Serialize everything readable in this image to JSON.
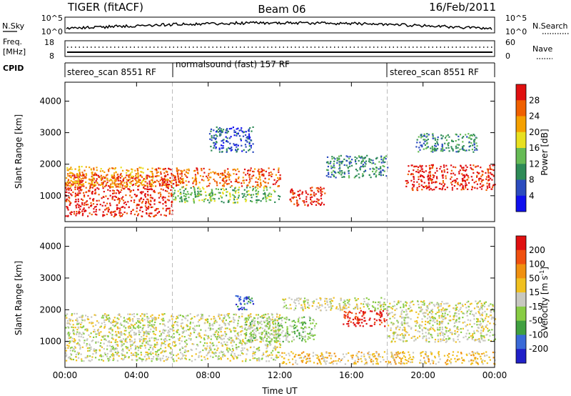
{
  "header": {
    "radar": "TIGER (fitACF)",
    "beam": "Beam 06",
    "date": "16/Feb/2011"
  },
  "aux_panels": {
    "nsky": {
      "label": "N.Sky",
      "left_ticks": [
        "10^5",
        "10^0"
      ],
      "right_label": "N.Search",
      "right_ticks": [
        "10^5",
        "10^0"
      ]
    },
    "freq": {
      "label_line1": "Freq.",
      "label_line2": "[MHz]",
      "left_ticks": [
        "18",
        "8"
      ],
      "right_label": "Nave",
      "right_ticks": [
        "60",
        "0"
      ]
    },
    "cpid": {
      "label": "CPID",
      "segments": [
        {
          "name": "stereo_scan 8551 RF",
          "start_hour": 0,
          "end_hour": 6
        },
        {
          "name": "normalsound (fast) 157 RF",
          "start_hour": 6,
          "end_hour": 18
        },
        {
          "name": "stereo_scan 8551 RF",
          "start_hour": 18,
          "end_hour": 24
        }
      ]
    }
  },
  "chart_data": [
    {
      "type": "heatmap",
      "name": "power",
      "ylabel": "Slant Range [km]",
      "xlim": [
        0,
        24
      ],
      "ylim": [
        180,
        4600
      ],
      "x_ticks": [
        "00:00",
        "04:00",
        "08:00",
        "12:00",
        "16:00",
        "20:00",
        "00:00"
      ],
      "x_tick_hours": [
        0,
        4,
        8,
        12,
        16,
        20,
        24
      ],
      "y_ticks": [
        1000,
        2000,
        3000,
        4000
      ],
      "colorbar": {
        "label": "Power [dB]",
        "ticks": [
          "4",
          "8",
          "12",
          "16",
          "20",
          "24",
          "28"
        ],
        "colors": [
          "#1010ee",
          "#2c4cbf",
          "#2e8b57",
          "#66bb55",
          "#e8e020",
          "#f5a000",
          "#f06000",
          "#e01010"
        ]
      },
      "regions": [
        {
          "x0": 0,
          "x1": 6,
          "y0": 350,
          "y1": 1700,
          "level": 7
        },
        {
          "x0": 0,
          "x1": 5,
          "y0": 1300,
          "y1": 1950,
          "level": 5
        },
        {
          "x0": 5,
          "x1": 12,
          "y0": 1300,
          "y1": 1900,
          "level": 6
        },
        {
          "x0": 6,
          "x1": 12,
          "y0": 800,
          "y1": 1300,
          "level": 3
        },
        {
          "x0": 12.5,
          "x1": 14.5,
          "y0": 700,
          "y1": 1300,
          "level": 7
        },
        {
          "x0": 14.5,
          "x1": 18,
          "y0": 1600,
          "y1": 2300,
          "level": 2
        },
        {
          "x0": 8,
          "x1": 10.5,
          "y0": 2400,
          "y1": 3200,
          "level": 1
        },
        {
          "x0": 19,
          "x1": 24,
          "y0": 1200,
          "y1": 2000,
          "level": 7
        },
        {
          "x0": 19.5,
          "x1": 23,
          "y0": 2400,
          "y1": 3000,
          "level": 2
        }
      ]
    },
    {
      "type": "heatmap",
      "name": "velocity",
      "ylabel": "Slant Range [km]",
      "xlabel": "Time UT",
      "xlim": [
        0,
        24
      ],
      "ylim": [
        180,
        4600
      ],
      "x_ticks": [
        "00:00",
        "04:00",
        "08:00",
        "12:00",
        "16:00",
        "20:00",
        "00:00"
      ],
      "x_tick_hours": [
        0,
        4,
        8,
        12,
        16,
        20,
        24
      ],
      "y_ticks": [
        1000,
        2000,
        3000,
        4000
      ],
      "colorbar": {
        "label_main": "Velocity [m s",
        "label_sup": "-1",
        "label_end": "]",
        "ticks": [
          "200",
          "100",
          "50",
          "15",
          "-15",
          "-50",
          "-100",
          "-200"
        ],
        "colors": [
          "#2020c8",
          "#3a6ad8",
          "#40a040",
          "#88cc44",
          "#c8c8c0",
          "#f0c020",
          "#f09010",
          "#f05010",
          "#e01010"
        ]
      },
      "regions": [
        {
          "x0": 0,
          "x1": 12,
          "y0": 400,
          "y1": 1900,
          "level": 4
        },
        {
          "x0": 10,
          "x1": 14,
          "y0": 1000,
          "y1": 1800,
          "level": 3
        },
        {
          "x0": 15.5,
          "x1": 18,
          "y0": 1500,
          "y1": 2000,
          "level": 8
        },
        {
          "x0": 9.5,
          "x1": 10.5,
          "y0": 2000,
          "y1": 2500,
          "level": 1
        },
        {
          "x0": 18,
          "x1": 24,
          "y0": 1000,
          "y1": 2300,
          "level": 4
        },
        {
          "x0": 12,
          "x1": 24,
          "y0": 300,
          "y1": 700,
          "level": 5
        },
        {
          "x0": 12,
          "x1": 18,
          "y0": 2000,
          "y1": 2400,
          "level": 4
        }
      ]
    }
  ]
}
